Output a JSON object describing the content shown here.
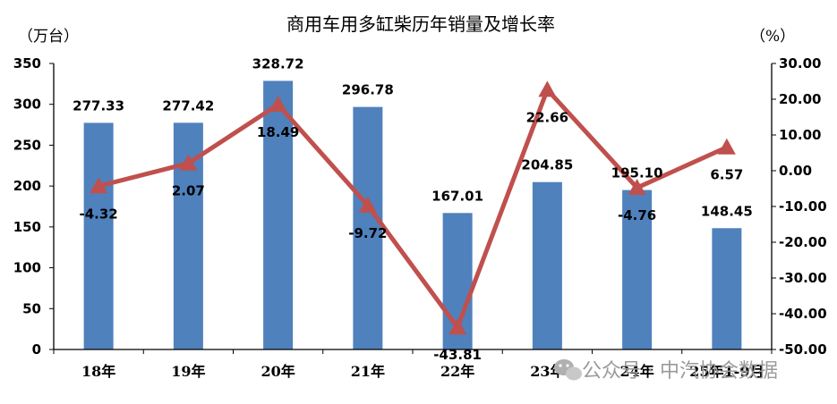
{
  "chart_data": {
    "type": "bar",
    "title": "商用车用多缸柴历年销量及增长率",
    "left_unit": "（万台）",
    "right_unit": "（%）",
    "categories": [
      "18年",
      "19年",
      "20年",
      "21年",
      "22年",
      "23年",
      "24年",
      "25年1-9月"
    ],
    "bar_series": {
      "values": [
        277.33,
        277.42,
        328.72,
        296.78,
        167.01,
        204.85,
        195.1,
        148.45
      ],
      "labels": [
        "277.33",
        "277.42",
        "328.72",
        "296.78",
        "167.01",
        "204.85",
        "195.10",
        "148.45"
      ],
      "color": "#4f81bd"
    },
    "line_series": {
      "values": [
        -4.32,
        2.07,
        18.49,
        -9.72,
        -43.81,
        22.66,
        -4.76,
        6.57
      ],
      "labels": [
        "-4.32",
        "2.07",
        "18.49",
        "-9.72",
        "-43.81",
        "22.66",
        "-4.76",
        "6.57"
      ],
      "color": "#c0504d",
      "marker": "triangle"
    },
    "y_left": {
      "min": 0,
      "max": 350,
      "ticks": [
        "0",
        "50",
        "100",
        "150",
        "200",
        "250",
        "300",
        "350"
      ]
    },
    "y_right": {
      "min": -50,
      "max": 30,
      "ticks": [
        "-50.00",
        "-40.00",
        "-30.00",
        "-20.00",
        "-10.00",
        "0.00",
        "10.00",
        "20.00",
        "30.00"
      ]
    },
    "grid": false,
    "legend": "none"
  },
  "watermark": {
    "text": "公众号 · 中汽协会数据",
    "icon": "wechat-icon"
  }
}
